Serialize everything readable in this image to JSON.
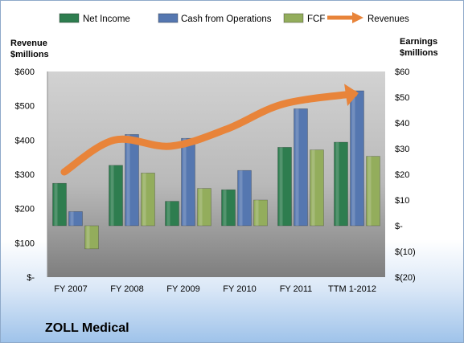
{
  "chart_data": {
    "type": "bar",
    "title": "ZOLL Medical",
    "categories": [
      "FY 2007",
      "FY 2008",
      "FY 2009",
      "FY 2010",
      "FY 2011",
      "TTM 1-2012"
    ],
    "legend_position": "top",
    "grid": false,
    "left_axis": {
      "label_line1": "Revenue",
      "label_line2": "$millions",
      "ylim": [
        0,
        600
      ],
      "ticks": [
        0,
        100,
        200,
        300,
        400,
        500,
        600
      ],
      "tick_labels": [
        "$-",
        "$100",
        "$200",
        "$300",
        "$400",
        "$500",
        "$600"
      ]
    },
    "right_axis": {
      "label_line1": "Earnings",
      "label_line2": "$millions",
      "ylim": [
        -20,
        60
      ],
      "ticks": [
        -20,
        -10,
        0,
        10,
        20,
        30,
        40,
        50,
        60
      ],
      "tick_labels": [
        "$(20)",
        "$(10)",
        "$-",
        "$10",
        "$20",
        "$30",
        "$40",
        "$50",
        "$60"
      ]
    },
    "bar_series": [
      {
        "name": "Net Income",
        "axis": "right",
        "color": "#2e7d4f",
        "values": [
          16.5,
          23.5,
          9.5,
          14,
          30.5,
          32.5
        ]
      },
      {
        "name": "Cash from Operations",
        "axis": "right",
        "color": "#5577b0",
        "values": [
          5.5,
          35.5,
          34,
          21.5,
          45.5,
          52.5
        ]
      },
      {
        "name": "FCF",
        "axis": "right",
        "color": "#93ad5c",
        "values": [
          -9,
          20.5,
          14.5,
          10,
          29.5,
          27
        ]
      }
    ],
    "line_series": [
      {
        "name": "Revenues",
        "axis": "left",
        "color": "#e8843a",
        "values": [
          307,
          400,
          382,
          432,
          505,
          535
        ]
      }
    ]
  }
}
